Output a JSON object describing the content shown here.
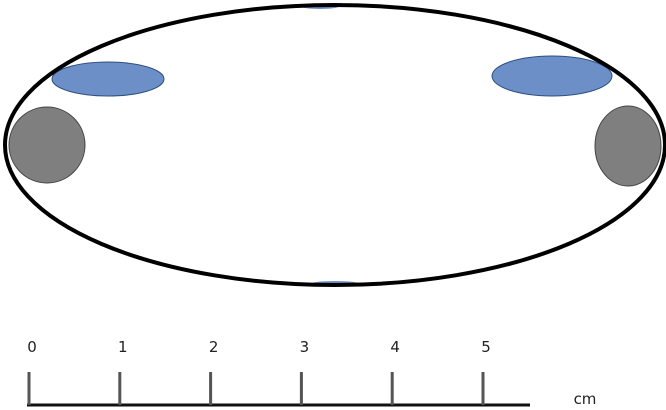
{
  "scale": {
    "ticks": [
      0,
      1,
      2,
      3,
      4,
      5
    ],
    "unit": "cm"
  }
}
